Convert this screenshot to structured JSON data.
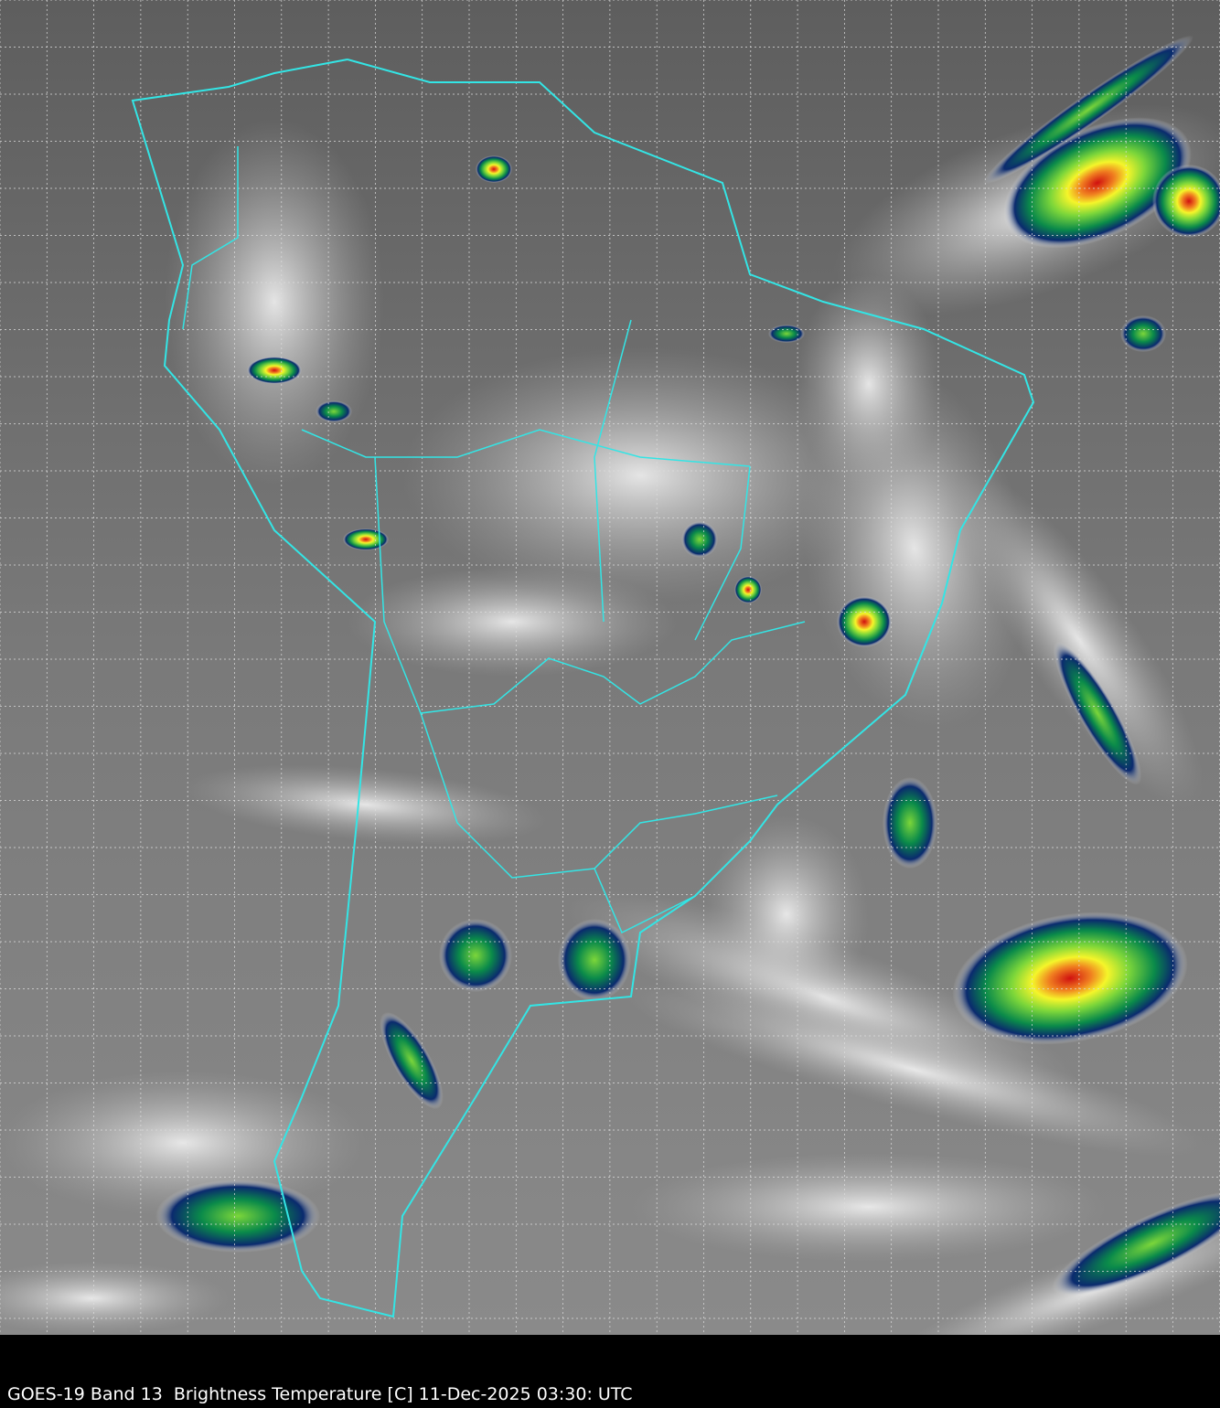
{
  "caption": "GOES-19 Band 13  Brightness Temperature [C] 11-Dec-2025 03:30: UTC",
  "colors": {
    "coastline": "#33e5e5",
    "grid": "#dddddd",
    "background_cloudfree": "#6a6a6a",
    "cloud_cold": "#ffffff",
    "convective_scale": [
      "#0a2a6e",
      "#0a8a4a",
      "#7cd63a",
      "#f5f52a",
      "#f08020",
      "#d01010",
      "#202020"
    ]
  }
}
